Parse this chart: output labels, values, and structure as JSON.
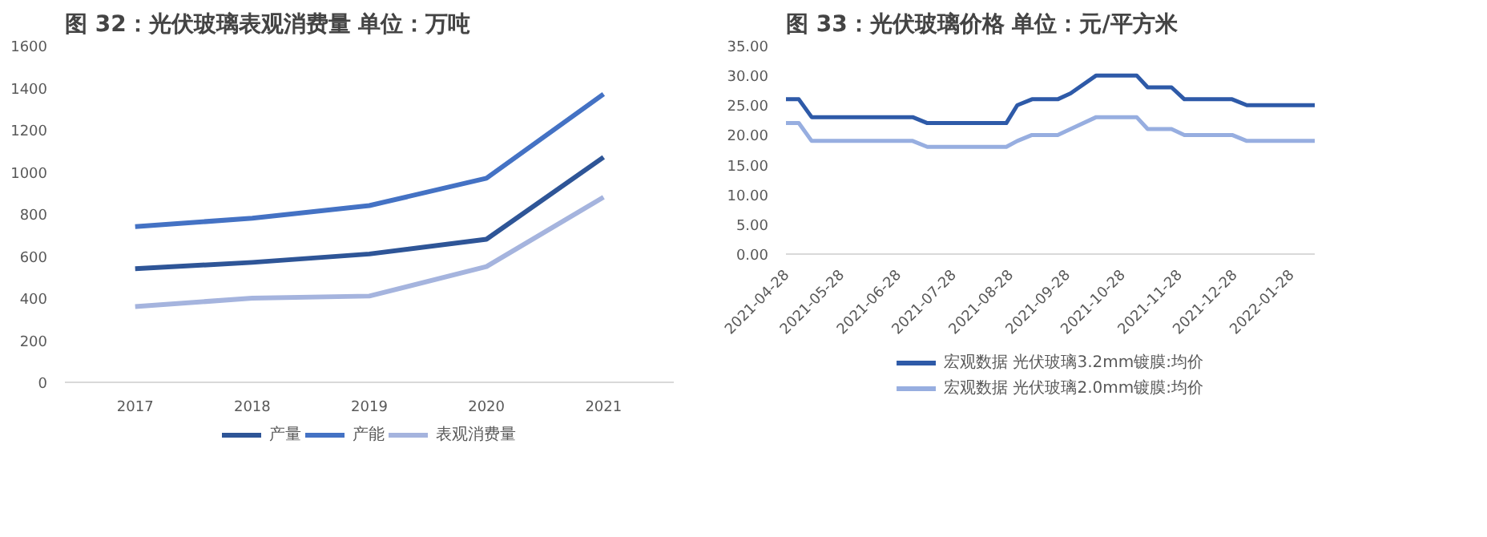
{
  "chart_data": [
    {
      "type": "line",
      "title": "图 32：光伏玻璃表观消费量 单位：万吨",
      "categories": [
        "2017",
        "2018",
        "2019",
        "2020",
        "2021"
      ],
      "series": [
        {
          "name": "产量",
          "color": "#2e5597",
          "values": [
            540,
            570,
            610,
            680,
            1070
          ]
        },
        {
          "name": "产能",
          "color": "#4472c4",
          "values": [
            740,
            780,
            840,
            970,
            1370
          ]
        },
        {
          "name": "表观消费量",
          "color": "#a5b4de",
          "values": [
            360,
            400,
            410,
            550,
            880
          ]
        }
      ],
      "ylim": [
        0,
        1600
      ],
      "yticks": [
        0,
        200,
        400,
        600,
        800,
        1000,
        1200,
        1400,
        1600
      ],
      "grid": false,
      "legend": "bottom"
    },
    {
      "type": "line",
      "title": "图 33：光伏玻璃价格 单位：元/平方米",
      "series": [
        {
          "name": "宏观数据 光伏玻璃3.2mm镀膜:均价",
          "color": "#2e5aa8",
          "x": [
            "2021-04-28",
            "2021-05-05",
            "2021-05-12",
            "2021-07-06",
            "2021-07-14",
            "2021-08-26",
            "2021-09-01",
            "2021-09-09",
            "2021-09-23",
            "2021-09-30",
            "2021-10-14",
            "2021-11-05",
            "2021-11-11",
            "2021-11-24",
            "2021-12-01",
            "2021-12-27",
            "2022-01-04",
            "2022-02-10"
          ],
          "values": [
            26,
            26,
            23,
            23,
            22,
            22,
            25,
            26,
            26,
            27,
            30,
            30,
            28,
            28,
            26,
            26,
            25,
            25
          ]
        },
        {
          "name": "宏观数据 光伏玻璃2.0mm镀膜:均价",
          "color": "#97aee0",
          "x": [
            "2021-04-28",
            "2021-05-05",
            "2021-05-12",
            "2021-07-06",
            "2021-07-14",
            "2021-08-26",
            "2021-09-01",
            "2021-09-09",
            "2021-09-23",
            "2021-09-30",
            "2021-10-14",
            "2021-11-05",
            "2021-11-11",
            "2021-11-24",
            "2021-12-01",
            "2021-12-27",
            "2022-01-04",
            "2022-02-10"
          ],
          "values": [
            22,
            22,
            19,
            19,
            18,
            18,
            19,
            20,
            20,
            21,
            23,
            23,
            21,
            21,
            20,
            20,
            19,
            19
          ]
        }
      ],
      "xlim": [
        "2021-04-28",
        "2022-02-10"
      ],
      "xticks": [
        "2021-04-28",
        "2021-05-28",
        "2021-06-28",
        "2021-07-28",
        "2021-08-28",
        "2021-09-28",
        "2021-10-28",
        "2021-11-28",
        "2021-12-28",
        "2022-01-28"
      ],
      "ylim": [
        0,
        35
      ],
      "yticks": [
        {
          "value": 0,
          "label": "0.00"
        },
        {
          "value": 5,
          "label": "5.00"
        },
        {
          "value": 10,
          "label": "10.00"
        },
        {
          "value": 15,
          "label": "15.00"
        },
        {
          "value": 20,
          "label": "20.00"
        },
        {
          "value": 25,
          "label": "25.00"
        },
        {
          "value": 30,
          "label": "30.00"
        },
        {
          "value": 35,
          "label": "35.00"
        }
      ],
      "grid": false,
      "legend": "bottom"
    }
  ]
}
